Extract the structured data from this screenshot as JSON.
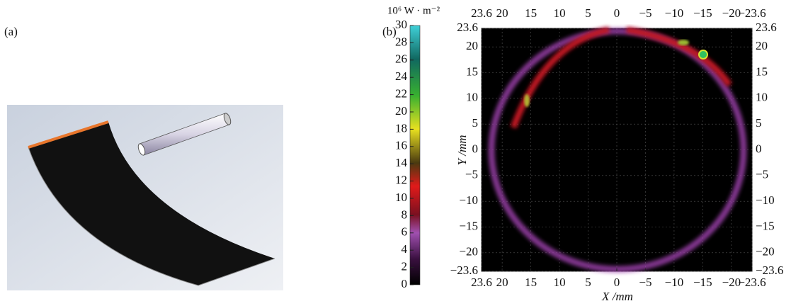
{
  "panel_a": {
    "label": "(a)"
  },
  "panel_b": {
    "label": "(b)",
    "colorbar": {
      "unit": "10⁶ W · m⁻²",
      "lim": [
        0,
        30
      ],
      "ticks": [
        0,
        2,
        4,
        6,
        8,
        10,
        12,
        14,
        16,
        18,
        20,
        22,
        24,
        26,
        28,
        30
      ]
    },
    "map": {
      "xlabel": "X /mm",
      "ylabel": "Y /mm",
      "xlim": [
        23.6,
        -23.6
      ],
      "ylim": [
        -23.6,
        23.6
      ],
      "xticks": [
        23.6,
        20,
        15,
        10,
        5,
        0,
        {
          "value": -5,
          "label": "−5"
        },
        {
          "value": -10,
          "label": "−10"
        },
        {
          "value": -15,
          "label": "−15"
        },
        {
          "value": -20,
          "label": "−20"
        },
        {
          "value": -23.6,
          "label": "−23.6"
        }
      ],
      "yticks": [
        23.6,
        20,
        15,
        10,
        5,
        0,
        {
          "value": -5,
          "label": "−5"
        },
        {
          "value": -10,
          "label": "−10"
        },
        {
          "value": -15,
          "label": "−15"
        },
        {
          "value": -20,
          "label": "−20"
        },
        {
          "value": -23.6,
          "label": "−23.6"
        }
      ]
    }
  }
}
